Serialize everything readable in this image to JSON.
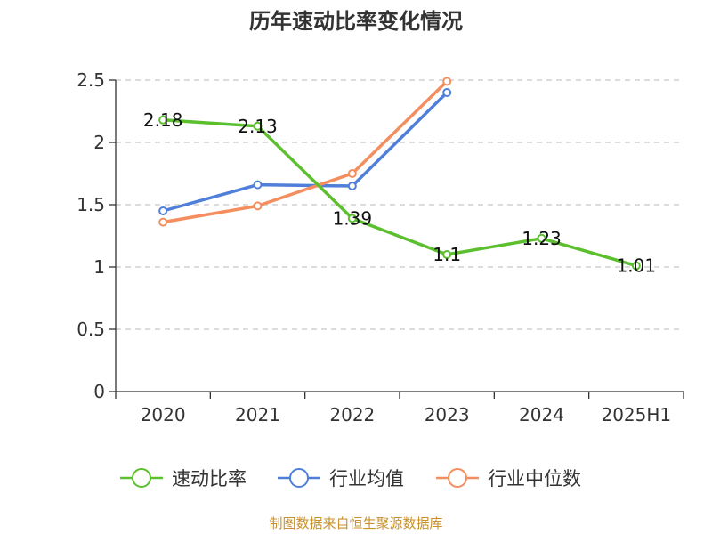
{
  "chart_data": {
    "type": "line",
    "title": "历年速动比率变化情况",
    "categories": [
      "2020",
      "2021",
      "2022",
      "2023",
      "2024",
      "2025H1"
    ],
    "ylim": [
      0,
      2.5
    ],
    "yticks": [
      "0",
      "0.5",
      "1",
      "1.5",
      "2",
      "2.5"
    ],
    "grid": true,
    "legend_position": "bottom",
    "series": [
      {
        "name": "速动比率",
        "color": "#5cbf2e",
        "values": [
          2.18,
          2.13,
          1.39,
          1.1,
          1.23,
          1.01
        ],
        "labels": [
          "2.18",
          "2.13",
          "1.39",
          "1.1",
          "1.23",
          "1.01"
        ]
      },
      {
        "name": "行业均值",
        "color": "#4f7fd9",
        "values": [
          1.45,
          1.66,
          1.65,
          2.4,
          null,
          null
        ]
      },
      {
        "name": "行业中位数",
        "color": "#f48e5e",
        "values": [
          1.36,
          1.49,
          1.75,
          2.49,
          null,
          null
        ]
      }
    ]
  },
  "footer": {
    "source": "制图数据来自恒生聚源数据库"
  }
}
